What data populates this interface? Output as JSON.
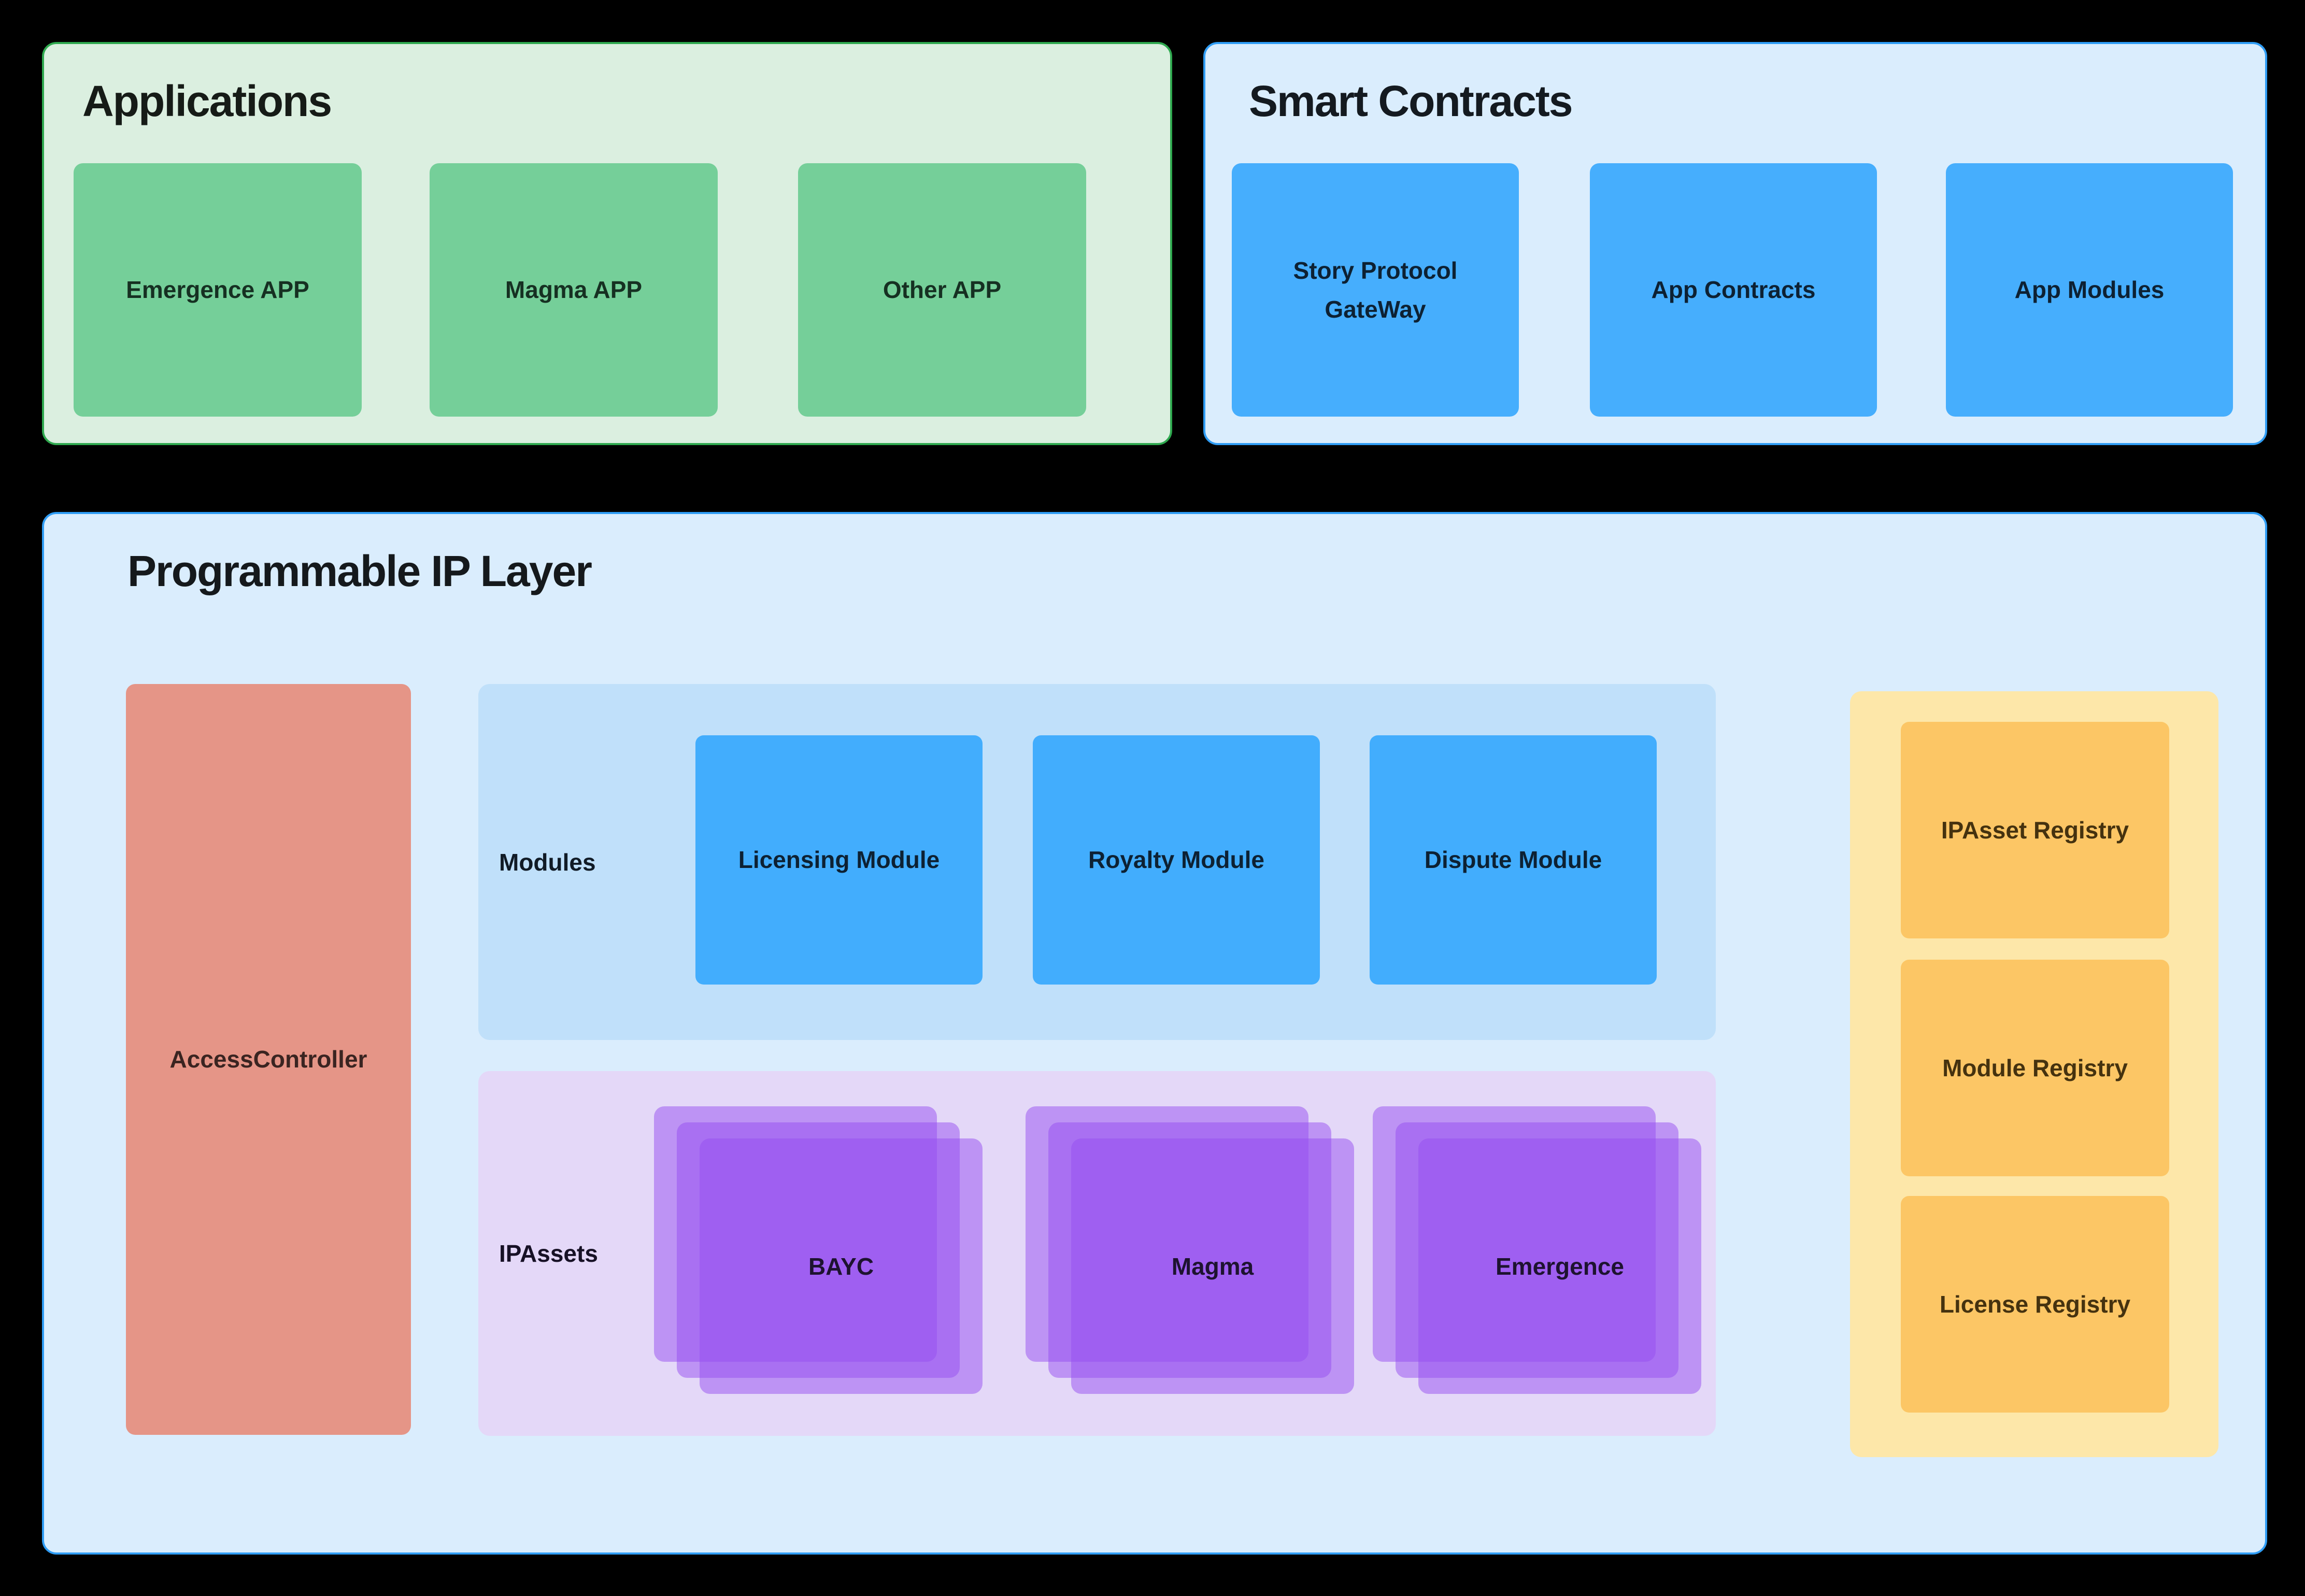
{
  "applications": {
    "title": "Applications",
    "boxes": [
      "Emergence APP",
      "Magma APP",
      "Other APP"
    ],
    "panel_color": "#dbefe0",
    "border_color": "#2fa94f",
    "box_color": "#75cf99"
  },
  "smart_contracts": {
    "title": "Smart Contracts",
    "gateway_lines": [
      "Story Protocol",
      "GateWay"
    ],
    "boxes": [
      "App Contracts",
      "App Modules"
    ],
    "panel_color": "#daedfd",
    "border_color": "#2f9df5",
    "box_color": "#46aefd"
  },
  "programmable_ip": {
    "title": "Programmable IP Layer",
    "panel_color": "#daedfd",
    "border_color": "#2f9df5",
    "access_controller": {
      "label": "AccessController",
      "color": "#e59587"
    },
    "modules": {
      "label": "Modules",
      "boxes": [
        "Licensing Module",
        "Royalty Module",
        "Dispute Module"
      ],
      "panel_color": "#c0e0fa",
      "box_color": "#42adfd"
    },
    "ip_assets": {
      "label": "IPAssets",
      "stacks": [
        "BAYC",
        "Magma",
        "Emergence"
      ],
      "panel_color": "#e4d8f8",
      "layer_color": "rgba(150,77,240,0.5)"
    },
    "registries": {
      "boxes": [
        "IPAsset Registry",
        "Module Registry",
        "License Registry"
      ],
      "panel_color": "#fde7a9",
      "box_color": "#fcc665"
    }
  }
}
